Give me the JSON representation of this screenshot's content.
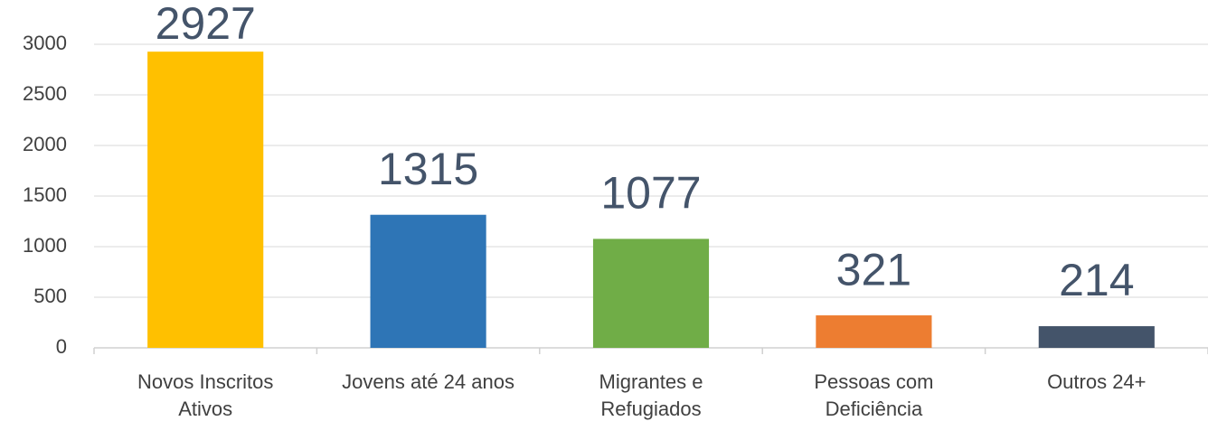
{
  "chart_data": {
    "type": "bar",
    "categories": [
      "Novos Inscritos Ativos",
      "Jovens até 24 anos",
      "Migrantes e Refugiados",
      "Pessoas com Deficiência",
      "Outros 24+"
    ],
    "values": [
      2927,
      1315,
      1077,
      321,
      214
    ],
    "colors": [
      "#FFC000",
      "#2E75B6",
      "#70AD47",
      "#ED7D31",
      "#44546A"
    ],
    "ylim": [
      0,
      3000
    ],
    "yticks": [
      0,
      500,
      1000,
      1500,
      2000,
      2500,
      3000
    ],
    "grid": true
  }
}
